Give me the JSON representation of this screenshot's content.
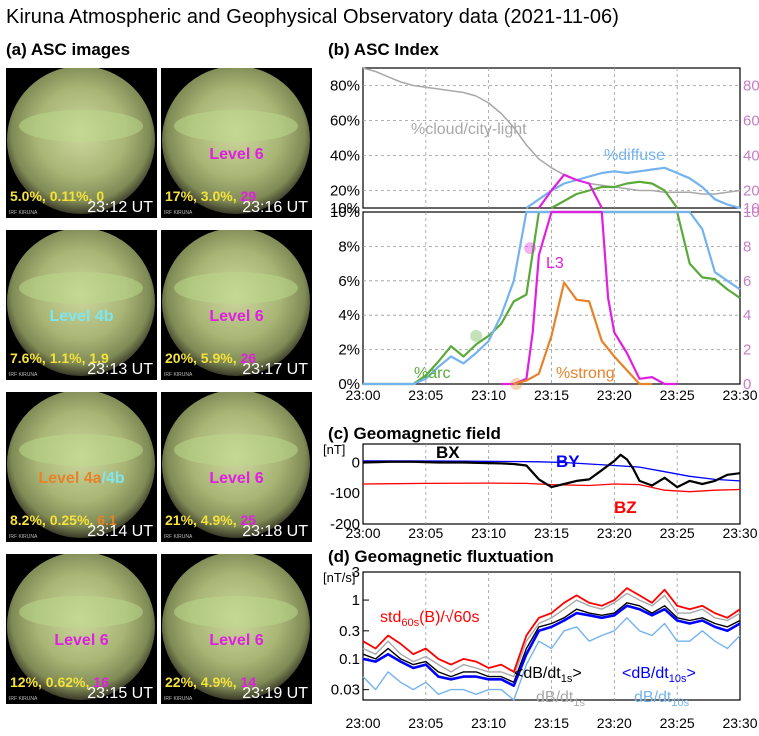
{
  "title": "Kiruna Atmospheric and Geophysical Observatory data (2021-11-06)",
  "panels": {
    "a": "(a) ASC images",
    "b": "(b) ASC Index",
    "c": "(c) Geomagnetic field",
    "d": "(d) Geomagnetic fluxtuation"
  },
  "colors": {
    "yellow": "#f4e23a",
    "magenta": "#e020e0",
    "cyan": "#7fe6f0",
    "orange": "#e8822a",
    "green": "#5aaa3a",
    "gray": "#a8a8a8",
    "lightblue": "#74b3ee"
  },
  "asc_images": [
    {
      "time": "23:12 UT",
      "level": [],
      "stats": [
        {
          "t": "5.0%, 0.11%, 0",
          "c": "yellow"
        }
      ]
    },
    {
      "time": "23:16 UT",
      "level": [
        {
          "t": "Level 6",
          "c": "magenta"
        }
      ],
      "stats": [
        {
          "t": "17%, 3.0%, ",
          "c": "yellow"
        },
        {
          "t": "29",
          "c": "magenta"
        }
      ]
    },
    {
      "time": "23:13 UT",
      "level": [
        {
          "t": "Level 4b",
          "c": "cyan"
        }
      ],
      "stats": [
        {
          "t": "7.6%, 1.1%, 1.9",
          "c": "yellow"
        }
      ]
    },
    {
      "time": "23:17 UT",
      "level": [
        {
          "t": "Level 6",
          "c": "magenta"
        }
      ],
      "stats": [
        {
          "t": "20%, 5.9%, ",
          "c": "yellow"
        },
        {
          "t": "26",
          "c": "magenta"
        }
      ]
    },
    {
      "time": "23:14 UT",
      "level": [
        {
          "t": "Level 4a",
          "c": "orange"
        },
        {
          "t": "/4b",
          "c": "cyan"
        }
      ],
      "stats": [
        {
          "t": "8.2%, 0.25%, ",
          "c": "yellow"
        },
        {
          "t": "6.1",
          "c": "orange"
        }
      ]
    },
    {
      "time": "23:18 UT",
      "level": [
        {
          "t": "Level 6",
          "c": "magenta"
        }
      ],
      "stats": [
        {
          "t": "21%, 4.9%, ",
          "c": "yellow"
        },
        {
          "t": "25",
          "c": "magenta"
        }
      ]
    },
    {
      "time": "23:15 UT",
      "level": [
        {
          "t": "Level 6",
          "c": "magenta"
        }
      ],
      "stats": [
        {
          "t": "12%, 0.62%, ",
          "c": "yellow"
        },
        {
          "t": "16",
          "c": "magenta"
        }
      ]
    },
    {
      "time": "23:19 UT",
      "level": [
        {
          "t": "Level 6",
          "c": "magenta"
        }
      ],
      "stats": [
        {
          "t": "22%, 4.9%, ",
          "c": "yellow"
        },
        {
          "t": "14",
          "c": "magenta"
        }
      ]
    }
  ],
  "asc_image_tag": "IRF KIRUNA",
  "chart_data": [
    {
      "id": "b-upper",
      "type": "line",
      "x_ticks": [
        "23:00",
        "23:05",
        "23:10",
        "23:15",
        "23:20",
        "23:25",
        "23:30"
      ],
      "xlim": [
        0,
        30
      ],
      "ylim": [
        10,
        90
      ],
      "y_ticks_left": [
        "80%",
        "60%",
        "40%",
        "20%",
        "10%"
      ],
      "y_ticks_right": [
        "80",
        "60",
        "40",
        "20",
        "10"
      ],
      "series": [
        {
          "name": "%cloud/city-light",
          "color": "gray",
          "x": [
            0,
            1,
            2,
            3,
            4,
            5,
            6,
            7,
            8,
            9,
            10,
            11,
            12,
            13,
            14,
            15,
            16,
            17,
            18,
            19,
            20,
            21,
            22,
            23,
            24,
            25,
            26,
            27,
            28,
            29,
            30
          ],
          "y": [
            90,
            88,
            85,
            82,
            80,
            79,
            78,
            77,
            76,
            74,
            70,
            64,
            56,
            46,
            38,
            33,
            29,
            26,
            24,
            23,
            22,
            21,
            20,
            20,
            19,
            19,
            19,
            18,
            18,
            19,
            20
          ]
        },
        {
          "name": "%diffuse",
          "color": "lightblue",
          "x": [
            13,
            14,
            15,
            16,
            17,
            18,
            19,
            20,
            21,
            22,
            23,
            24,
            25,
            26,
            27,
            28,
            29,
            30
          ],
          "y": [
            10,
            15,
            20,
            24,
            26,
            28,
            30,
            31,
            30,
            31,
            32,
            33,
            30,
            27,
            22,
            15,
            12,
            10
          ]
        },
        {
          "name": "",
          "color": "green",
          "x": [
            15,
            16,
            17,
            18,
            19,
            20,
            21,
            22,
            23,
            24,
            25
          ],
          "y": [
            10,
            14,
            18,
            20,
            22,
            22,
            24,
            25,
            24,
            20,
            10
          ]
        },
        {
          "name": "",
          "color": "magenta",
          "x": [
            14,
            15,
            16,
            17,
            18,
            19
          ],
          "y": [
            10,
            20,
            29,
            26,
            24,
            10
          ]
        }
      ]
    },
    {
      "id": "b-lower",
      "type": "line",
      "x_ticks": [
        "23:00",
        "23:05",
        "23:10",
        "23:15",
        "23:20",
        "23:25",
        "23:30"
      ],
      "xlim": [
        0,
        30
      ],
      "ylim": [
        0,
        10
      ],
      "y_ticks_left": [
        "10%",
        "8%",
        "6%",
        "4%",
        "2%",
        "0%"
      ],
      "y_ticks_right": [
        "10",
        "8",
        "6",
        "4",
        "2",
        "0"
      ],
      "series": [
        {
          "name": "%arc",
          "color": "green",
          "x": [
            0,
            1,
            2,
            3,
            4,
            5,
            6,
            7,
            8,
            9,
            10,
            11,
            12,
            13,
            14,
            15,
            16,
            17,
            18,
            19,
            20,
            21,
            22,
            23,
            24,
            25,
            26,
            27,
            28,
            29,
            30
          ],
          "y": [
            0,
            0,
            0,
            0,
            0,
            0.5,
            1.3,
            2.2,
            1.6,
            2.3,
            2.8,
            3.5,
            4.8,
            5.2,
            10,
            10,
            10,
            10,
            10,
            10,
            10,
            10,
            10,
            10,
            10,
            10,
            7,
            6.2,
            6.1,
            5.5,
            5.0
          ]
        },
        {
          "name": "",
          "color": "lightblue",
          "x": [
            0,
            1,
            2,
            3,
            4,
            5,
            6,
            7,
            8,
            9,
            10,
            11,
            12,
            13,
            14,
            15,
            16,
            17,
            18,
            19,
            20,
            21,
            22,
            23,
            24,
            25,
            26,
            27,
            28,
            29,
            30
          ],
          "y": [
            0,
            0,
            0,
            0,
            0,
            0.3,
            1.0,
            1.6,
            1.2,
            1.8,
            2.5,
            4.0,
            6.0,
            10,
            10,
            10,
            10,
            10,
            10,
            10,
            10,
            10,
            10,
            10,
            10,
            10,
            10,
            9,
            6.5,
            6.0,
            5.5
          ]
        },
        {
          "name": "L3",
          "color": "magenta",
          "x": [
            11,
            12,
            13,
            13.5,
            14,
            15,
            16,
            17,
            18,
            19,
            19.5,
            20,
            21,
            22,
            23,
            24,
            25
          ],
          "y": [
            0,
            0,
            0.3,
            3,
            7.5,
            10,
            10,
            10,
            10,
            10,
            5,
            3,
            1.8,
            0.3,
            0.4,
            0,
            0
          ]
        },
        {
          "name": "%strong",
          "color": "orange",
          "x": [
            12,
            13,
            14,
            15,
            16,
            17,
            18,
            19,
            20,
            21,
            22,
            23
          ],
          "y": [
            0,
            0.2,
            0.6,
            2.8,
            5.9,
            4.9,
            4.8,
            2.5,
            1.6,
            0.8,
            0,
            0
          ]
        }
      ],
      "markers": [
        {
          "x": 9,
          "y": 2.8,
          "color": "green"
        },
        {
          "x": 13.3,
          "y": 7.9,
          "color": "magenta"
        },
        {
          "x": 12.2,
          "y": 0,
          "color": "orange"
        }
      ]
    },
    {
      "id": "c",
      "type": "line",
      "ylabel": "[nT]",
      "x_ticks": [
        "23:00",
        "23:05",
        "23:10",
        "23:15",
        "23:20",
        "23:25",
        "23:30"
      ],
      "xlim": [
        0,
        30
      ],
      "ylim": [
        -200,
        60
      ],
      "y_ticks": [
        "0",
        "-100",
        "-200"
      ],
      "y_tick_values": [
        0,
        -100,
        -200
      ],
      "series": [
        {
          "name": "BX",
          "color": "black",
          "x": [
            0,
            2,
            4,
            6,
            8,
            10,
            11,
            12,
            13,
            14,
            15,
            16,
            17,
            18,
            19,
            20,
            20.5,
            21,
            21.5,
            22,
            23,
            24,
            25,
            26,
            27,
            28,
            29,
            30
          ],
          "y": [
            0,
            2,
            2,
            0,
            0,
            -2,
            -3,
            -5,
            -10,
            -55,
            -80,
            -70,
            -60,
            -55,
            -25,
            5,
            25,
            10,
            -20,
            -60,
            -75,
            -50,
            -80,
            -60,
            -70,
            -60,
            -40,
            -35
          ]
        },
        {
          "name": "BY",
          "color": "blue",
          "x": [
            0,
            4,
            8,
            12,
            14,
            16,
            18,
            20,
            22,
            24,
            26,
            28,
            30
          ],
          "y": [
            5,
            5,
            4,
            3,
            2,
            0,
            -5,
            -10,
            -15,
            -30,
            -45,
            -55,
            -60
          ]
        },
        {
          "name": "BZ",
          "color": "red",
          "x": [
            0,
            5,
            10,
            13,
            15,
            18,
            20,
            22,
            24,
            26,
            28,
            30
          ],
          "y": [
            -70,
            -68,
            -67,
            -68,
            -72,
            -75,
            -70,
            -72,
            -90,
            -95,
            -90,
            -88
          ]
        }
      ],
      "labels": [
        "BX",
        "BY",
        "BZ"
      ]
    },
    {
      "id": "d",
      "type": "line",
      "ylabel": "[nT/s]",
      "scale": "log",
      "x_ticks": [
        "23:00",
        "23:05",
        "23:10",
        "23:15",
        "23:20",
        "23:25",
        "23:30"
      ],
      "xlim": [
        0,
        30
      ],
      "ylim": [
        0.02,
        3
      ],
      "y_ticks": [
        "3",
        "1",
        "0.3",
        "0.1",
        "0.03"
      ],
      "y_tick_values": [
        3,
        1,
        0.3,
        0.1,
        0.03
      ],
      "series": [
        {
          "name": "std60s(B)/√60s",
          "color": "red",
          "x": [
            0,
            1,
            2,
            3,
            4,
            5,
            6,
            7,
            8,
            9,
            10,
            11,
            12,
            13,
            14,
            15,
            16,
            17,
            18,
            19,
            20,
            21,
            22,
            23,
            24,
            25,
            26,
            27,
            28,
            29,
            30
          ],
          "y": [
            0.2,
            0.15,
            0.25,
            0.18,
            0.12,
            0.15,
            0.1,
            0.08,
            0.1,
            0.09,
            0.07,
            0.08,
            0.06,
            0.25,
            0.5,
            0.6,
            0.9,
            1.2,
            0.9,
            0.8,
            1.0,
            1.6,
            1.2,
            0.9,
            1.5,
            0.8,
            0.7,
            0.8,
            0.6,
            0.5,
            0.7
          ]
        },
        {
          "name": "<dB/dt1s>",
          "color": "black",
          "x": [
            0,
            1,
            2,
            3,
            4,
            5,
            6,
            7,
            8,
            9,
            10,
            11,
            12,
            13,
            14,
            15,
            16,
            17,
            18,
            19,
            20,
            21,
            22,
            23,
            24,
            25,
            26,
            27,
            28,
            29,
            30
          ],
          "y": [
            0.12,
            0.1,
            0.15,
            0.1,
            0.08,
            0.09,
            0.06,
            0.05,
            0.06,
            0.06,
            0.05,
            0.05,
            0.04,
            0.15,
            0.35,
            0.4,
            0.5,
            0.7,
            0.6,
            0.55,
            0.6,
            0.9,
            0.8,
            0.6,
            0.8,
            0.5,
            0.45,
            0.5,
            0.4,
            0.35,
            0.45
          ]
        },
        {
          "name": "<dB/dt10s>",
          "color": "blue",
          "x": [
            0,
            1,
            2,
            3,
            4,
            5,
            6,
            7,
            8,
            9,
            10,
            11,
            12,
            13,
            14,
            15,
            16,
            17,
            18,
            19,
            20,
            21,
            22,
            23,
            24,
            25,
            26,
            27,
            28,
            29,
            30
          ],
          "y": [
            0.1,
            0.09,
            0.12,
            0.09,
            0.07,
            0.08,
            0.05,
            0.045,
            0.05,
            0.05,
            0.045,
            0.045,
            0.035,
            0.12,
            0.3,
            0.35,
            0.45,
            0.6,
            0.55,
            0.5,
            0.55,
            0.8,
            0.7,
            0.55,
            0.7,
            0.45,
            0.4,
            0.45,
            0.35,
            0.3,
            0.4
          ]
        },
        {
          "name": "dB/dt1s",
          "color": "gray",
          "x": [
            0,
            1,
            2,
            3,
            4,
            5,
            6,
            7,
            8,
            9,
            10,
            11,
            12,
            13,
            14,
            15,
            16,
            17,
            18,
            19,
            20,
            21,
            22,
            23,
            24,
            25,
            26,
            27,
            28,
            29,
            30
          ],
          "y": [
            0.15,
            0.12,
            0.2,
            0.12,
            0.09,
            0.11,
            0.08,
            0.06,
            0.08,
            0.07,
            0.06,
            0.06,
            0.05,
            0.2,
            0.4,
            0.5,
            0.7,
            1.0,
            0.8,
            0.7,
            0.9,
            1.3,
            1.0,
            0.8,
            1.2,
            0.6,
            0.6,
            0.7,
            0.5,
            0.45,
            0.6
          ]
        },
        {
          "name": "dB/dt10s",
          "color": "lightblue",
          "x": [
            0,
            1,
            2,
            3,
            4,
            5,
            6,
            7,
            8,
            9,
            10,
            11,
            12,
            13,
            14,
            15,
            16,
            17,
            18,
            19,
            20,
            21,
            22,
            23,
            24,
            25,
            26,
            27,
            28,
            29,
            30
          ],
          "y": [
            0.05,
            0.03,
            0.06,
            0.04,
            0.03,
            0.04,
            0.025,
            0.03,
            0.03,
            0.025,
            0.03,
            0.03,
            0.02,
            0.08,
            0.2,
            0.15,
            0.3,
            0.35,
            0.2,
            0.25,
            0.3,
            0.5,
            0.3,
            0.25,
            0.4,
            0.2,
            0.2,
            0.3,
            0.2,
            0.15,
            0.25
          ]
        }
      ],
      "labels": [
        {
          "text": "std",
          "sub": "60s",
          "rest": "(B)/√60s",
          "color": "red"
        },
        {
          "text": "<dB/dt",
          "sub": "1s",
          "rest": ">",
          "color": "black"
        },
        {
          "text": "<dB/dt",
          "sub": "10s",
          "rest": ">",
          "color": "blue"
        },
        {
          "text": "dB/dt",
          "sub": "1s",
          "rest": "",
          "color": "gray"
        },
        {
          "text": "dB/dt",
          "sub": "10s",
          "rest": "",
          "color": "lightblue"
        }
      ]
    }
  ]
}
